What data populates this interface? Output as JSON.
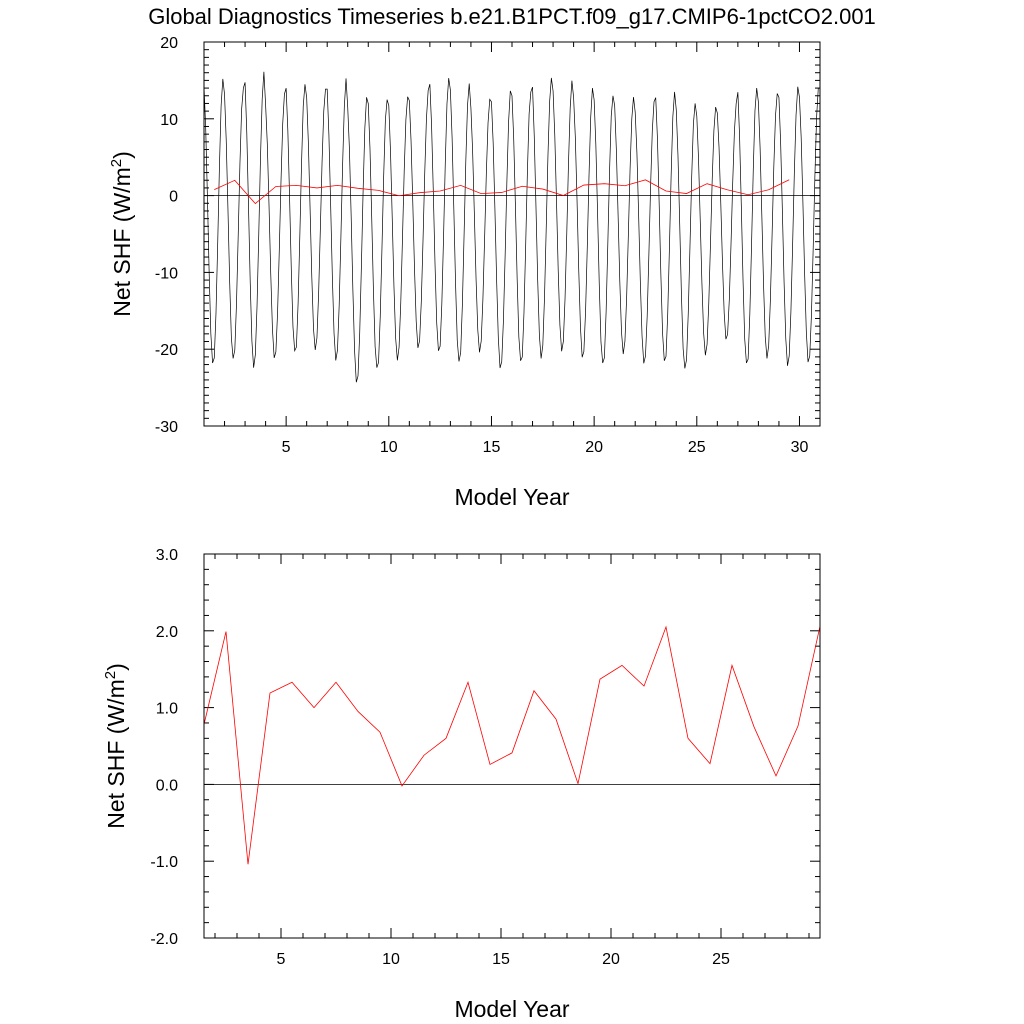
{
  "figure_title": "Global Diagnostics Timeseries b.e21.B1PCT.f09_g17.CMIP6-1pctCO2.001",
  "colors": {
    "monthly": "#000000",
    "annual": "#ff0000",
    "zero": "#000000"
  },
  "chart_data": [
    {
      "type": "line",
      "xlabel": "Model Year",
      "ylabel": "Net SHF (W/m",
      "ylabel_sup": "2",
      "ylabel_close": ")",
      "xlim": [
        1,
        31
      ],
      "ylim": [
        -30,
        20
      ],
      "xticks": [
        5,
        10,
        15,
        20,
        25,
        30
      ],
      "yticks": [
        -30,
        -20,
        -10,
        0,
        10,
        20
      ],
      "ytick_labels": [
        "-30",
        "-20",
        "-10",
        "0",
        "10",
        "20"
      ],
      "reference_line": 0,
      "series": [
        {
          "kind": "monthly",
          "monthly_peaks": [
            15.2,
            14.0,
            17.1,
            13.6,
            14.5,
            14.0,
            16.3,
            12.8,
            12.5,
            13.5,
            14.5,
            15.3,
            14.6,
            13.5,
            14.0,
            13.5,
            15.5,
            16.0,
            14.0,
            13.0,
            13.5,
            13.0,
            13.5,
            12.0,
            12.5,
            12.3,
            14.0,
            13.5
          ],
          "monthly_troughs": [
            -21.8,
            -21.2,
            -23.2,
            -21.8,
            -20.2,
            -20.1,
            -22.5,
            -24.5,
            -22.4,
            -21.8,
            -20.8,
            -20.2,
            -21.6,
            -21.2,
            -23.1,
            -21.5,
            -21.2,
            -21.3,
            -21.2,
            -21.8,
            -21.0,
            -22.8,
            -21.5,
            -22.5,
            -21.6,
            -19.3
          ]
        },
        {
          "kind": "annual",
          "x": [
            1.5,
            2.5,
            3.5,
            4.5,
            5.5,
            6.5,
            7.5,
            8.5,
            9.5,
            10.5,
            11.5,
            12.5,
            13.5,
            14.5,
            15.5,
            16.5,
            17.5,
            18.5,
            19.5,
            20.5,
            21.5,
            22.5,
            23.5,
            24.5,
            25.5,
            26.5,
            27.5,
            28.5,
            29.5
          ],
          "y": [
            0.78,
            1.99,
            -1.04,
            1.19,
            1.33,
            1.0,
            1.33,
            0.95,
            0.68,
            -0.02,
            0.38,
            0.6,
            1.33,
            0.26,
            0.41,
            1.22,
            0.85,
            0.01,
            1.37,
            1.55,
            1.28,
            2.05,
            0.6,
            0.27,
            1.55,
            0.75,
            0.11,
            0.76,
            2.06
          ]
        }
      ]
    },
    {
      "type": "line",
      "xlabel": "Model Year",
      "ylabel": "Net SHF (W/m",
      "ylabel_sup": "2",
      "ylabel_close": ")",
      "xlim": [
        1.5,
        29.5
      ],
      "ylim": [
        -2.0,
        3.0
      ],
      "xticks": [
        5,
        10,
        15,
        20,
        25
      ],
      "yticks": [
        -2.0,
        -1.0,
        0.0,
        1.0,
        2.0,
        3.0
      ],
      "ytick_labels": [
        "-2.0",
        "-1.0",
        "0.0",
        "1.0",
        "2.0",
        "3.0"
      ],
      "reference_line": 0,
      "series": [
        {
          "kind": "annual",
          "x": [
            1.5,
            2.5,
            3.5,
            4.5,
            5.5,
            6.5,
            7.5,
            8.5,
            9.5,
            10.5,
            11.5,
            12.5,
            13.5,
            14.5,
            15.5,
            16.5,
            17.5,
            18.5,
            19.5,
            20.5,
            21.5,
            22.5,
            23.5,
            24.5,
            25.5,
            26.5,
            27.5,
            28.5,
            29.5
          ],
          "y": [
            0.78,
            1.99,
            -1.04,
            1.19,
            1.33,
            1.0,
            1.33,
            0.95,
            0.68,
            -0.02,
            0.38,
            0.6,
            1.33,
            0.26,
            0.41,
            1.22,
            0.85,
            0.01,
            1.37,
            1.55,
            1.28,
            2.05,
            0.6,
            0.27,
            1.55,
            0.75,
            0.11,
            0.76,
            2.06
          ]
        }
      ]
    }
  ]
}
